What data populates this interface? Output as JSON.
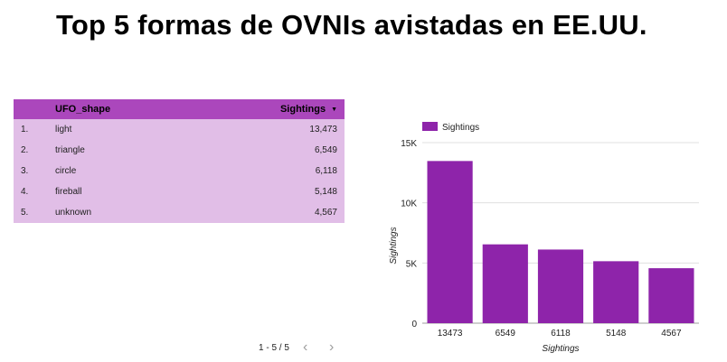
{
  "title": "Top 5 formas de OVNIs avistadas en EE.UU.",
  "table": {
    "headers": {
      "shape": "UFO_shape",
      "value": "Sightings"
    },
    "rows": [
      {
        "index": "1.",
        "shape": "light",
        "value": "13,473"
      },
      {
        "index": "2.",
        "shape": "triangle",
        "value": "6,549"
      },
      {
        "index": "3.",
        "shape": "circle",
        "value": "6,118"
      },
      {
        "index": "4.",
        "shape": "fireball",
        "value": "5,148"
      },
      {
        "index": "5.",
        "shape": "unknown",
        "value": "4,567"
      }
    ],
    "sort_icon": "sort-descending-icon"
  },
  "pagination": {
    "label": "1 - 5 / 5",
    "prev_icon": "chevron-left-icon",
    "next_icon": "chevron-right-icon"
  },
  "colors": {
    "header": "#ab47bc",
    "rows": "#e1bee7",
    "bar": "#8e24aa"
  },
  "chart_data": {
    "type": "bar",
    "categories": [
      "13473",
      "6549",
      "6118",
      "5148",
      "4567"
    ],
    "series": [
      {
        "name": "Sightings",
        "values": [
          13473,
          6549,
          6118,
          5148,
          4567
        ]
      }
    ],
    "xlabel": "Sightings",
    "ylabel": "Sightings",
    "ylim": [
      0,
      15000
    ],
    "yticks": [
      0,
      5000,
      10000,
      15000
    ],
    "ytick_labels": [
      "0",
      "5K",
      "10K",
      "15K"
    ],
    "grid": true,
    "legend": "top-left",
    "bar_color": "#8e24aa"
  }
}
